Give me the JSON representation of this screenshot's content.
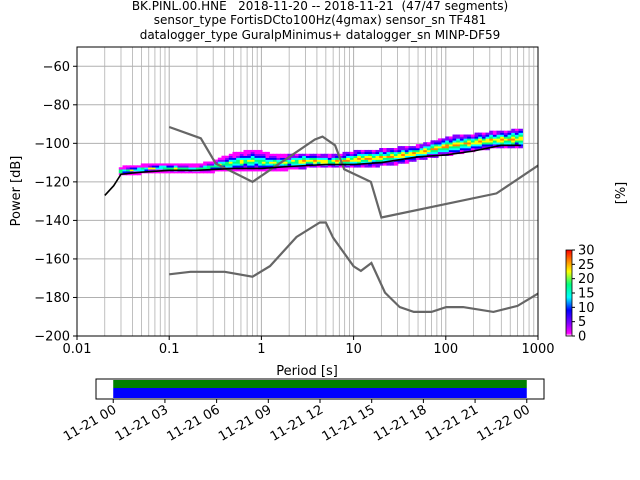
{
  "title_lines": [
    "BK.PINL.00.HNE   2018-11-20 -- 2018-11-21  (47/47 segments)",
    "sensor_type FortisDCto100Hz(4gmax) sensor_sn TF481",
    "datalogger_type GuralpMinimus+ datalogger_sn MINP-DF59"
  ],
  "chart_data": [
    {
      "type": "heatmap",
      "xlabel": "Period [s]",
      "ylabel": "Power [dB]",
      "xscale": "log",
      "xlim": [
        0.01,
        1000
      ],
      "ylim": [
        -200,
        -50
      ],
      "xticks": [
        "0.01",
        "0.1",
        "1",
        "10",
        "100",
        "1000"
      ],
      "yticks": [
        "−200",
        "−180",
        "−160",
        "−140",
        "−120",
        "−100",
        "−80",
        "−60"
      ],
      "grid": true,
      "colorbar": {
        "label": "[%]",
        "ticks": [
          "0",
          "5",
          "10",
          "15",
          "20",
          "25",
          "30"
        ],
        "range": [
          0,
          30
        ],
        "colors": [
          "#ffffff",
          "#ff00ff",
          "#7f00ff",
          "#0000ff",
          "#00ffff",
          "#00ff7f",
          "#ffff00",
          "#ff7f00",
          "#ff0000"
        ]
      },
      "psd_cloud": [
        [
          0.03,
          -116,
          -113
        ],
        [
          0.05,
          -115,
          -112
        ],
        [
          0.08,
          -114,
          -111
        ],
        [
          0.12,
          -115,
          -111
        ],
        [
          0.2,
          -115,
          -112
        ],
        [
          0.3,
          -114,
          -110
        ],
        [
          0.5,
          -114,
          -106
        ],
        [
          0.8,
          -114,
          -104
        ],
        [
          1.2,
          -114,
          -106
        ],
        [
          2,
          -113,
          -107
        ],
        [
          3,
          -112,
          -106
        ],
        [
          5,
          -112,
          -107
        ],
        [
          8,
          -112,
          -106
        ],
        [
          12,
          -112,
          -104
        ],
        [
          20,
          -111,
          -104
        ],
        [
          30,
          -110,
          -103
        ],
        [
          50,
          -108,
          -102
        ],
        [
          80,
          -106,
          -99
        ],
        [
          120,
          -105,
          -97
        ],
        [
          200,
          -103,
          -96
        ],
        [
          300,
          -102,
          -95
        ],
        [
          500,
          -102,
          -94
        ],
        [
          650,
          -102,
          -93
        ]
      ],
      "mode_line": [
        [
          0.02,
          -127
        ],
        [
          0.025,
          -122
        ],
        [
          0.03,
          -116
        ],
        [
          0.05,
          -115
        ],
        [
          0.1,
          -114
        ],
        [
          0.2,
          -114
        ],
        [
          0.5,
          -113
        ],
        [
          1,
          -113
        ],
        [
          2,
          -112
        ],
        [
          5,
          -111
        ],
        [
          10,
          -111
        ],
        [
          20,
          -110
        ],
        [
          50,
          -107
        ],
        [
          100,
          -106
        ],
        [
          200,
          -104
        ],
        [
          400,
          -101
        ],
        [
          650,
          -101
        ]
      ],
      "nhnm": [
        [
          0.1,
          -91.5
        ],
        [
          0.22,
          -97.4
        ],
        [
          0.32,
          -110.5
        ],
        [
          0.8,
          -120
        ],
        [
          3.8,
          -98
        ],
        [
          4.6,
          -96.5
        ],
        [
          6.3,
          -101
        ],
        [
          7.9,
          -113.5
        ],
        [
          15.4,
          -120
        ],
        [
          20,
          -138.5
        ],
        [
          354.8,
          -126
        ],
        [
          1000,
          -111.5
        ]
      ],
      "nlnm": [
        [
          0.1,
          -168
        ],
        [
          0.17,
          -166.7
        ],
        [
          0.4,
          -166.7
        ],
        [
          0.8,
          -169.2
        ],
        [
          1.24,
          -163.7
        ],
        [
          2.4,
          -148.6
        ],
        [
          4.3,
          -141.1
        ],
        [
          5,
          -141.1
        ],
        [
          6,
          -149
        ],
        [
          10,
          -163.8
        ],
        [
          12,
          -166.2
        ],
        [
          15.6,
          -162.1
        ],
        [
          21.9,
          -177.5
        ],
        [
          31.6,
          -185
        ],
        [
          45,
          -187.5
        ],
        [
          70,
          -187.5
        ],
        [
          101,
          -185
        ],
        [
          154,
          -185
        ],
        [
          328,
          -187.5
        ],
        [
          600,
          -184.4
        ],
        [
          1000,
          -178
        ]
      ]
    },
    {
      "type": "bar",
      "orientation": "horizontal",
      "categories": [
        "11-21 00",
        "11-21 03",
        "11-21 06",
        "11-21 09",
        "11-21 12",
        "11-21 15",
        "11-21 18",
        "11-21 21",
        "11-22 00"
      ],
      "xlim_hours": [
        -1,
        25
      ],
      "series": [
        {
          "coverage_hours": [
            0,
            24
          ],
          "color": "#008000"
        },
        {
          "coverage_hours": [
            0,
            24
          ],
          "color": "#0000ff"
        }
      ]
    }
  ]
}
